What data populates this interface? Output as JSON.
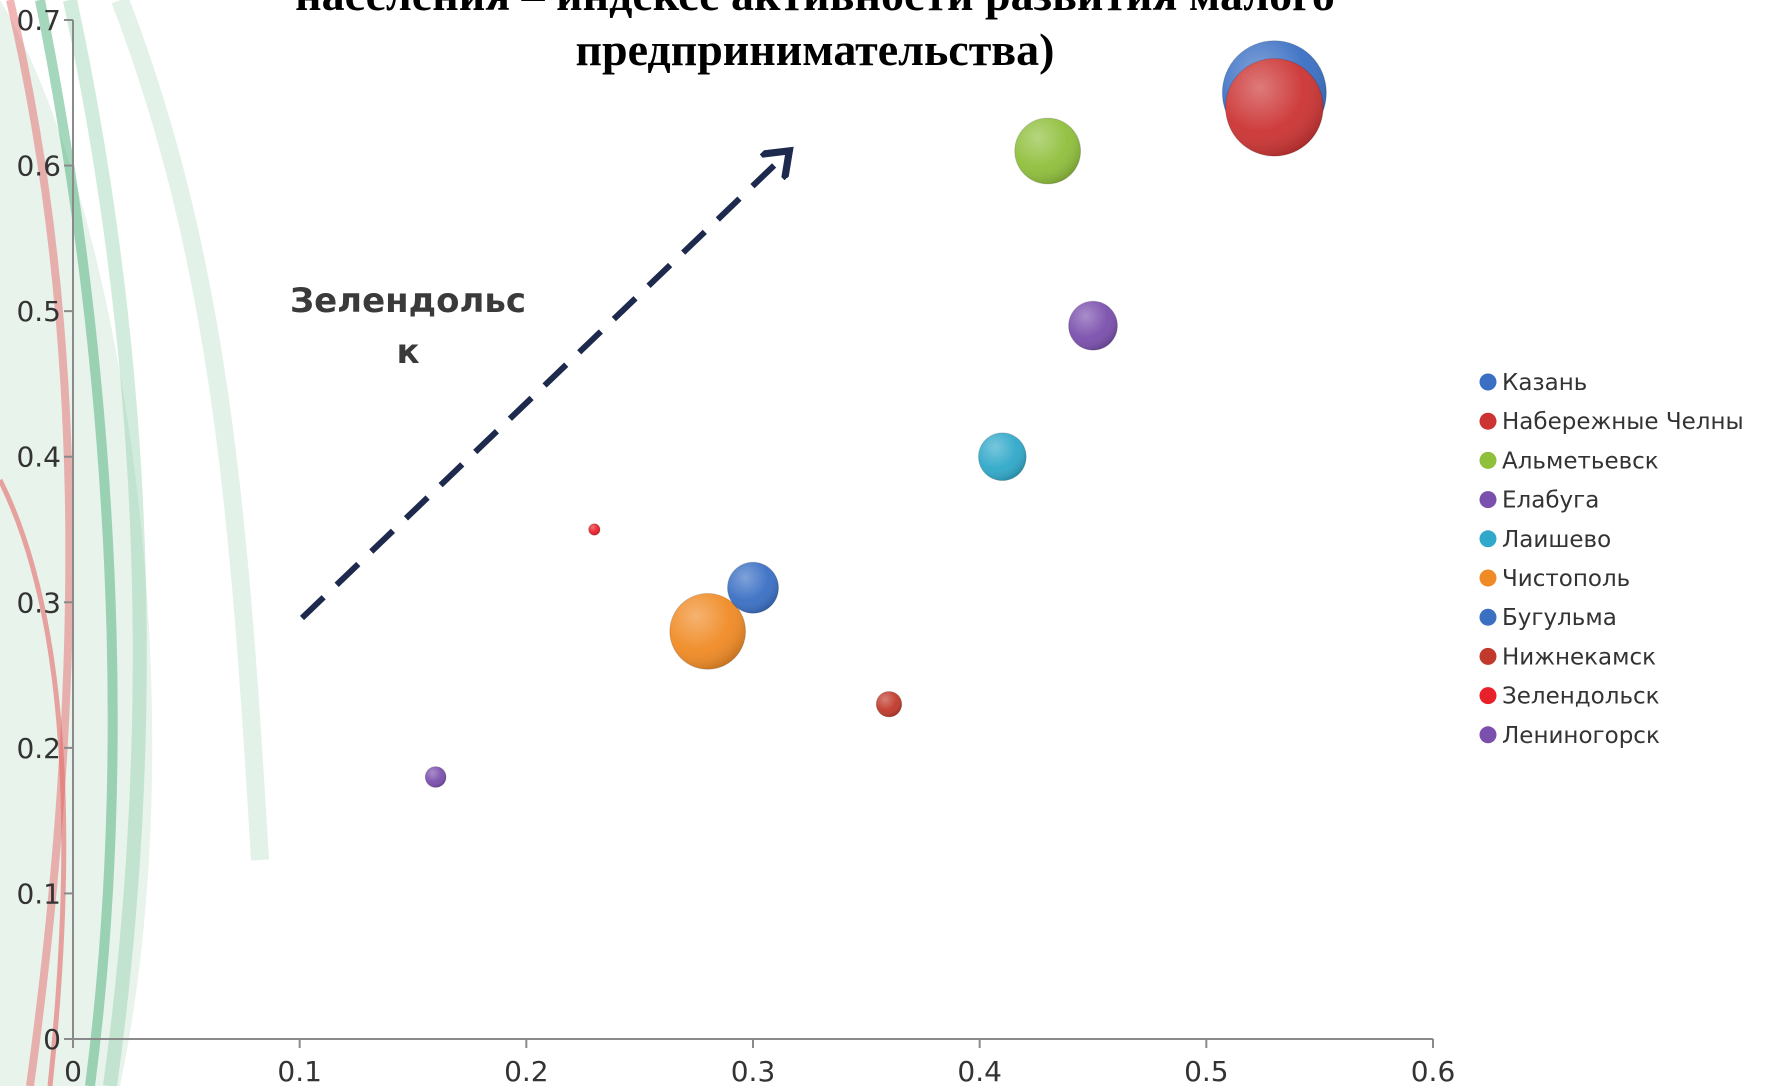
{
  "chart_data": {
    "type": "scatter",
    "title_lines": [
      "населения – индексе активности развития малого",
      "предпринимательства)"
    ],
    "xlabel": "",
    "ylabel": "",
    "xlim": [
      0,
      0.6
    ],
    "ylim": [
      0,
      0.7
    ],
    "x_ticks": [
      0,
      0.1,
      0.2,
      0.3,
      0.4,
      0.5,
      0.6
    ],
    "y_ticks": [
      0,
      0.1,
      0.2,
      0.3,
      0.4,
      0.5,
      0.6,
      0.7
    ],
    "legend_position": "right",
    "grid": false,
    "annotation": {
      "lines": [
        "Зелендольс",
        "к"
      ]
    },
    "series": [
      {
        "name": "Казань",
        "x": 0.53,
        "y": 0.65,
        "size": 1.0,
        "color": "#3a6fc4"
      },
      {
        "name": "Набережные Челны",
        "x": 0.53,
        "y": 0.64,
        "size": 0.88,
        "color": "#cc3333"
      },
      {
        "name": "Альметьевск",
        "x": 0.43,
        "y": 0.61,
        "size": 0.4,
        "color": "#8fbf3b"
      },
      {
        "name": "Елабуга",
        "x": 0.45,
        "y": 0.49,
        "size": 0.22,
        "color": "#7a4fad"
      },
      {
        "name": "Лаишево",
        "x": 0.41,
        "y": 0.4,
        "size": 0.21,
        "color": "#2fa8c9"
      },
      {
        "name": "Чистополь",
        "x": 0.28,
        "y": 0.28,
        "size": 0.53,
        "color": "#f08a24"
      },
      {
        "name": "Бугульма",
        "x": 0.3,
        "y": 0.31,
        "size": 0.24,
        "color": "#3a6fc4"
      },
      {
        "name": "Нижнекамск",
        "x": 0.36,
        "y": 0.23,
        "size": 0.06,
        "color": "#c0392b"
      },
      {
        "name": "Зелендольск",
        "x": 0.23,
        "y": 0.35,
        "size": 0.012,
        "color": "#e8202a"
      },
      {
        "name": "Лениногорск",
        "x": 0.16,
        "y": 0.18,
        "size": 0.04,
        "color": "#7a4fad"
      }
    ]
  }
}
